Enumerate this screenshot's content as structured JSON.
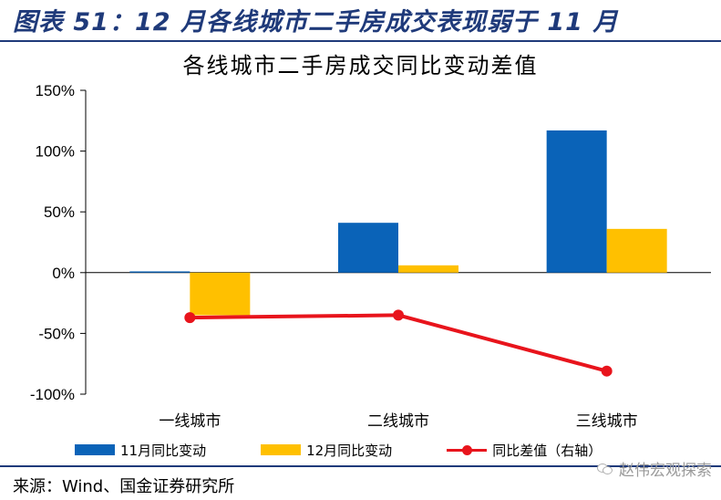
{
  "header": {
    "title": "图表 51：12 月各线城市二手房成交表现弱于 11 月"
  },
  "chart_data": {
    "type": "bar",
    "title": "各线城市二手房成交同比变动差值",
    "categories": [
      "一线城市",
      "二线城市",
      "三线城市"
    ],
    "y_ticks": [
      "150%",
      "100%",
      "50%",
      "0%",
      "-50%",
      "-100%"
    ],
    "ylim": [
      -100,
      150
    ],
    "y_unit": "%",
    "grid": false,
    "legend_position": "bottom",
    "series": [
      {
        "name": "11月同比变动",
        "type": "bar",
        "axis": "left",
        "color": "#0a63b8",
        "values": [
          1,
          41,
          117
        ]
      },
      {
        "name": "12月同比变动",
        "type": "bar",
        "axis": "left",
        "color": "#ffc000",
        "values": [
          -35,
          6,
          36
        ]
      },
      {
        "name": "同比差值（右轴）",
        "type": "line",
        "axis": "right",
        "color": "#e8141c",
        "values": [
          -37,
          -35,
          -81
        ]
      }
    ]
  },
  "source": "来源：Wind、国金证券研究所",
  "watermark": "赵伟宏观探索"
}
